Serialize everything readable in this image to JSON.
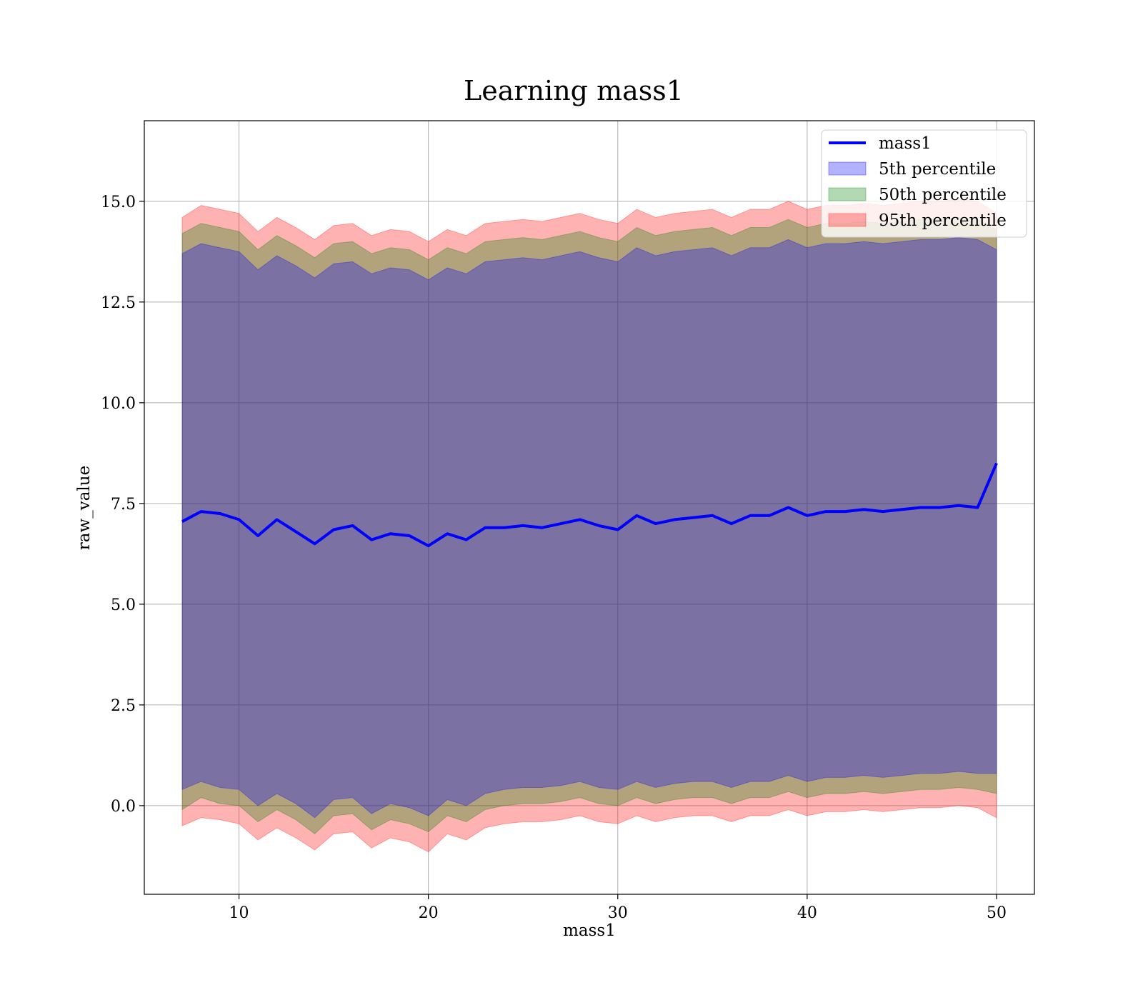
{
  "chart_data": {
    "type": "area",
    "title": "Learning mass1",
    "xlabel": "mass1",
    "ylabel": "raw_value",
    "xlim": [
      5,
      52
    ],
    "ylim": [
      -2.2,
      17.0
    ],
    "x_ticks": [
      10,
      20,
      30,
      40,
      50
    ],
    "x_tick_labels": [
      "10",
      "20",
      "30",
      "40",
      "50"
    ],
    "y_ticks": [
      0.0,
      2.5,
      5.0,
      7.5,
      10.0,
      12.5,
      15.0
    ],
    "y_tick_labels": [
      "0.0",
      "2.5",
      "5.0",
      "7.5",
      "10.0",
      "12.5",
      "15.0"
    ],
    "grid": true,
    "legend_position": "top-right",
    "colors": {
      "line": "#0000ff",
      "p5": "#0000ff",
      "p50": "#008000",
      "p95": "#ff0000",
      "grid": "#b0b0b0"
    },
    "line": {
      "name": "mass1",
      "x": [
        7.0,
        8.0,
        9.0,
        10.0,
        11.0,
        12.0,
        13.0,
        14.0,
        15.0,
        16.0,
        17.0,
        18.0,
        19.0,
        20.0,
        21.0,
        22.0,
        23.0,
        24.0,
        25.0,
        26.0,
        27.0,
        28.0,
        29.0,
        30.0,
        31.0,
        32.0,
        33.0,
        34.0,
        35.0,
        36.0,
        37.0,
        38.0,
        39.0,
        40.0,
        41.0,
        42.0,
        43.0,
        44.0,
        45.0,
        46.0,
        47.0,
        48.0,
        49.0,
        50.0
      ],
      "y": [
        7.05,
        7.3,
        7.25,
        7.1,
        6.7,
        7.1,
        6.8,
        6.5,
        6.85,
        6.95,
        6.6,
        6.75,
        6.7,
        6.45,
        6.75,
        6.6,
        6.9,
        6.9,
        6.95,
        6.9,
        7.0,
        7.1,
        6.95,
        6.85,
        7.2,
        7.0,
        7.1,
        7.15,
        7.2,
        7.0,
        7.2,
        7.2,
        7.4,
        7.2,
        7.3,
        7.3,
        7.35,
        7.3,
        7.35,
        7.4,
        7.4,
        7.45,
        7.4,
        8.5
      ]
    },
    "bands": [
      {
        "name": "5th percentile",
        "x": [
          7.0,
          8.0,
          9.0,
          10.0,
          11.0,
          12.0,
          13.0,
          14.0,
          15.0,
          16.0,
          17.0,
          18.0,
          19.0,
          20.0,
          21.0,
          22.0,
          23.0,
          24.0,
          25.0,
          26.0,
          27.0,
          28.0,
          29.0,
          30.0,
          31.0,
          32.0,
          33.0,
          34.0,
          35.0,
          36.0,
          37.0,
          38.0,
          39.0,
          40.0,
          41.0,
          42.0,
          43.0,
          44.0,
          45.0,
          46.0,
          47.0,
          48.0,
          49.0,
          50.0
        ],
        "lower": [
          0.4,
          0.6,
          0.45,
          0.4,
          0.0,
          0.3,
          0.05,
          -0.3,
          0.15,
          0.2,
          -0.2,
          0.05,
          -0.05,
          -0.25,
          0.15,
          0.0,
          0.3,
          0.4,
          0.45,
          0.45,
          0.5,
          0.6,
          0.45,
          0.4,
          0.6,
          0.45,
          0.55,
          0.6,
          0.6,
          0.45,
          0.6,
          0.6,
          0.75,
          0.6,
          0.7,
          0.7,
          0.75,
          0.7,
          0.75,
          0.8,
          0.8,
          0.85,
          0.8,
          0.8
        ],
        "upper": [
          13.7,
          13.95,
          13.85,
          13.75,
          13.3,
          13.65,
          13.4,
          13.1,
          13.45,
          13.5,
          13.2,
          13.35,
          13.3,
          13.05,
          13.35,
          13.2,
          13.5,
          13.55,
          13.6,
          13.55,
          13.65,
          13.75,
          13.6,
          13.5,
          13.85,
          13.65,
          13.75,
          13.8,
          13.85,
          13.65,
          13.85,
          13.85,
          14.05,
          13.85,
          13.95,
          13.95,
          14.0,
          13.95,
          14.0,
          14.05,
          14.05,
          14.1,
          14.05,
          13.8
        ]
      },
      {
        "name": "50th percentile",
        "x": [
          7.0,
          8.0,
          9.0,
          10.0,
          11.0,
          12.0,
          13.0,
          14.0,
          15.0,
          16.0,
          17.0,
          18.0,
          19.0,
          20.0,
          21.0,
          22.0,
          23.0,
          24.0,
          25.0,
          26.0,
          27.0,
          28.0,
          29.0,
          30.0,
          31.0,
          32.0,
          33.0,
          34.0,
          35.0,
          36.0,
          37.0,
          38.0,
          39.0,
          40.0,
          41.0,
          42.0,
          43.0,
          44.0,
          45.0,
          46.0,
          47.0,
          48.0,
          49.0,
          50.0
        ],
        "lower": [
          -0.1,
          0.2,
          0.05,
          0.0,
          -0.4,
          -0.1,
          -0.35,
          -0.7,
          -0.25,
          -0.2,
          -0.6,
          -0.35,
          -0.45,
          -0.65,
          -0.25,
          -0.4,
          -0.1,
          0.0,
          0.05,
          0.05,
          0.1,
          0.2,
          0.05,
          0.0,
          0.2,
          0.05,
          0.15,
          0.2,
          0.2,
          0.05,
          0.2,
          0.2,
          0.35,
          0.2,
          0.3,
          0.3,
          0.35,
          0.3,
          0.35,
          0.4,
          0.4,
          0.45,
          0.4,
          0.3
        ],
        "upper": [
          14.2,
          14.45,
          14.35,
          14.25,
          13.8,
          14.15,
          13.9,
          13.6,
          13.95,
          14.0,
          13.7,
          13.85,
          13.8,
          13.55,
          13.85,
          13.7,
          14.0,
          14.05,
          14.1,
          14.05,
          14.15,
          14.25,
          14.1,
          14.0,
          14.35,
          14.15,
          14.25,
          14.3,
          14.35,
          14.15,
          14.35,
          14.35,
          14.55,
          14.35,
          14.45,
          14.45,
          14.5,
          14.45,
          14.5,
          14.55,
          14.55,
          14.6,
          14.55,
          14.3
        ]
      },
      {
        "name": "95th percentile",
        "x": [
          7.0,
          8.0,
          9.0,
          10.0,
          11.0,
          12.0,
          13.0,
          14.0,
          15.0,
          16.0,
          17.0,
          18.0,
          19.0,
          20.0,
          21.0,
          22.0,
          23.0,
          24.0,
          25.0,
          26.0,
          27.0,
          28.0,
          29.0,
          30.0,
          31.0,
          32.0,
          33.0,
          34.0,
          35.0,
          36.0,
          37.0,
          38.0,
          39.0,
          40.0,
          41.0,
          42.0,
          43.0,
          44.0,
          45.0,
          46.0,
          47.0,
          48.0,
          49.0,
          50.0
        ],
        "lower": [
          -0.5,
          -0.3,
          -0.35,
          -0.45,
          -0.85,
          -0.55,
          -0.8,
          -1.1,
          -0.7,
          -0.65,
          -1.05,
          -0.8,
          -0.9,
          -1.15,
          -0.7,
          -0.85,
          -0.55,
          -0.45,
          -0.4,
          -0.4,
          -0.35,
          -0.25,
          -0.4,
          -0.45,
          -0.25,
          -0.4,
          -0.3,
          -0.25,
          -0.25,
          -0.4,
          -0.25,
          -0.25,
          -0.1,
          -0.25,
          -0.15,
          -0.15,
          -0.1,
          -0.15,
          -0.1,
          -0.05,
          -0.05,
          0.0,
          -0.05,
          -0.3
        ],
        "upper": [
          14.6,
          14.9,
          14.8,
          14.7,
          14.25,
          14.6,
          14.35,
          14.05,
          14.4,
          14.45,
          14.15,
          14.3,
          14.25,
          14.0,
          14.3,
          14.15,
          14.45,
          14.5,
          14.55,
          14.5,
          14.6,
          14.7,
          14.55,
          14.45,
          14.8,
          14.6,
          14.7,
          14.75,
          14.8,
          14.6,
          14.8,
          14.8,
          15.0,
          14.8,
          14.9,
          14.9,
          14.95,
          14.9,
          14.95,
          15.0,
          15.0,
          15.05,
          15.0,
          14.7
        ]
      }
    ],
    "legend": [
      "mass1",
      "5th percentile",
      "50th percentile",
      "95th percentile"
    ]
  }
}
